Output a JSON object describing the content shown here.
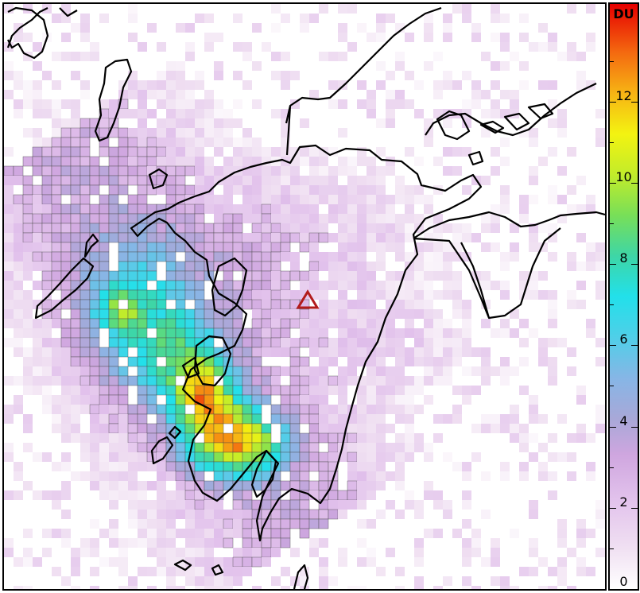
{
  "colorbar": {
    "unit": "DU",
    "ticks": [
      0,
      2,
      4,
      6,
      8,
      10,
      12
    ],
    "max": 14.4,
    "stops": [
      {
        "v": 0,
        "c": "#ffffff"
      },
      {
        "v": 1.0,
        "c": "#f0e0f2"
      },
      {
        "v": 2.2,
        "c": "#e2c2ec"
      },
      {
        "v": 3.3,
        "c": "#cfa6df"
      },
      {
        "v": 4.2,
        "c": "#a8a8d8"
      },
      {
        "v": 5.2,
        "c": "#86b6e6"
      },
      {
        "v": 6.2,
        "c": "#4fcfe8"
      },
      {
        "v": 7.2,
        "c": "#22e0ea"
      },
      {
        "v": 8.2,
        "c": "#3ed6a6"
      },
      {
        "v": 9.2,
        "c": "#78df58"
      },
      {
        "v": 10.2,
        "c": "#c2ec2a"
      },
      {
        "v": 11.2,
        "c": "#f3f311"
      },
      {
        "v": 12.2,
        "c": "#f7b414"
      },
      {
        "v": 13.2,
        "c": "#f46a10"
      },
      {
        "v": 14.4,
        "c": "#e60000"
      }
    ]
  },
  "map": {
    "marker": "volcano-triangle-icon",
    "marker_color": "#b21c1c",
    "coastline_color": "#000000",
    "grid_line_color": "#4a4a4a"
  }
}
